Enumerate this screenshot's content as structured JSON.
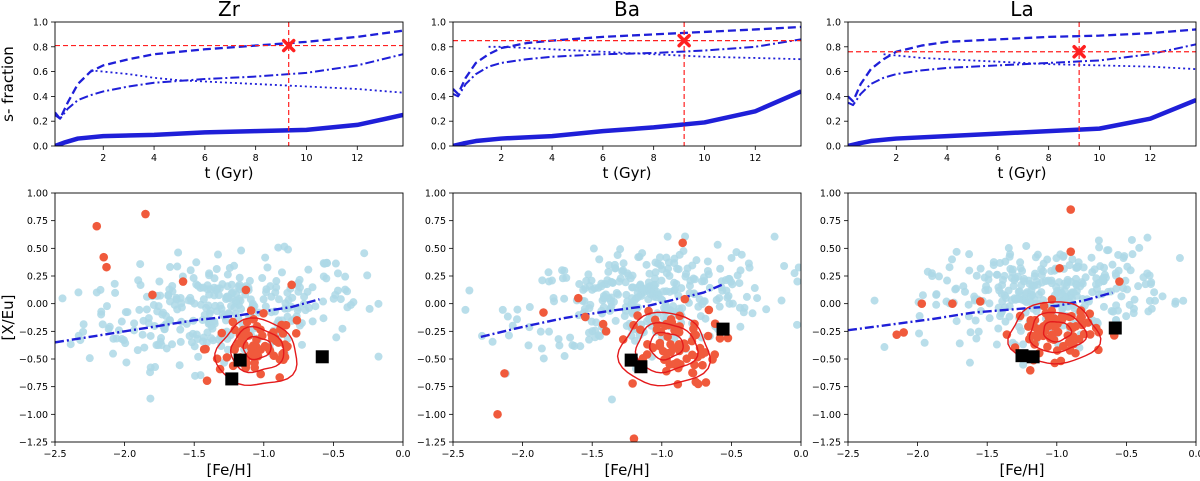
{
  "colors": {
    "model_line": "#1f1fd8",
    "reference": "#ff2020",
    "field_points": "#add8e6",
    "cluster_points": "#f05a3c",
    "contour": "#e41a1c",
    "highlight": "#000000"
  },
  "ylabels": {
    "top": "s- fraction",
    "bottom": "[X/Eu]"
  },
  "xlabels": {
    "top": "t (Gyr)",
    "bottom": "[Fe/H]"
  },
  "chart_data": [
    {
      "panel": "Zr",
      "type": "line",
      "title": "Zr",
      "xlabel": "t (Gyr)",
      "ylabel": "s- fraction",
      "xlim": [
        0.1,
        13.8
      ],
      "ylim": [
        0,
        1.0
      ],
      "xticks": [
        2,
        4,
        6,
        8,
        10,
        12
      ],
      "yticks": [
        0.0,
        0.2,
        0.4,
        0.6,
        0.8,
        1.0
      ],
      "reference": {
        "x": 9.3,
        "y": 0.81
      },
      "series": [
        {
          "style": "dashed",
          "x": [
            0.1,
            0.3,
            0.6,
            1,
            1.5,
            2,
            3,
            4,
            6,
            8,
            10,
            12,
            13.8
          ],
          "y": [
            0.27,
            0.22,
            0.35,
            0.5,
            0.6,
            0.65,
            0.7,
            0.74,
            0.78,
            0.81,
            0.84,
            0.88,
            0.93
          ]
        },
        {
          "style": "dashdot",
          "x": [
            0.1,
            0.3,
            0.6,
            1,
            1.5,
            2,
            3,
            4,
            6,
            8,
            10,
            12,
            13.8
          ],
          "y": [
            0.25,
            0.22,
            0.3,
            0.37,
            0.41,
            0.44,
            0.48,
            0.51,
            0.54,
            0.56,
            0.59,
            0.65,
            0.74
          ]
        },
        {
          "style": "dotted",
          "x": [
            1.5,
            2,
            3,
            4,
            5,
            6,
            8,
            10,
            12,
            13.8
          ],
          "y": [
            0.61,
            0.6,
            0.58,
            0.55,
            0.53,
            0.52,
            0.5,
            0.48,
            0.46,
            0.43
          ]
        },
        {
          "style": "thick",
          "x": [
            0.1,
            0.5,
            1,
            2,
            4,
            6,
            8,
            10,
            12,
            13.8
          ],
          "y": [
            0.0,
            0.03,
            0.06,
            0.08,
            0.09,
            0.11,
            0.12,
            0.13,
            0.17,
            0.25
          ]
        }
      ]
    },
    {
      "panel": "Ba",
      "type": "line",
      "title": "Ba",
      "xlabel": "t (Gyr)",
      "ylabel": "",
      "xlim": [
        0.1,
        13.8
      ],
      "ylim": [
        0,
        1.0
      ],
      "xticks": [
        2,
        4,
        6,
        8,
        10,
        12
      ],
      "yticks": [
        0.0,
        0.2,
        0.4,
        0.6,
        0.8,
        1.0
      ],
      "reference": {
        "x": 9.2,
        "y": 0.85
      },
      "series": [
        {
          "style": "dashed",
          "x": [
            0.1,
            0.3,
            0.6,
            1,
            1.5,
            2,
            3,
            4,
            6,
            8,
            10,
            12,
            13.8
          ],
          "y": [
            0.46,
            0.42,
            0.55,
            0.67,
            0.74,
            0.79,
            0.83,
            0.85,
            0.88,
            0.9,
            0.92,
            0.94,
            0.96
          ]
        },
        {
          "style": "dashdot",
          "x": [
            0.1,
            0.3,
            0.6,
            1,
            1.5,
            2,
            3,
            4,
            6,
            8,
            10,
            12,
            13.8
          ],
          "y": [
            0.42,
            0.4,
            0.5,
            0.58,
            0.64,
            0.67,
            0.7,
            0.72,
            0.74,
            0.75,
            0.77,
            0.8,
            0.86
          ]
        },
        {
          "style": "dotted",
          "x": [
            1.5,
            2,
            3,
            4,
            6,
            8,
            10,
            12,
            13.8
          ],
          "y": [
            0.8,
            0.8,
            0.79,
            0.78,
            0.76,
            0.74,
            0.72,
            0.71,
            0.7
          ]
        },
        {
          "style": "thick",
          "x": [
            0.1,
            0.5,
            1,
            2,
            4,
            6,
            8,
            10,
            12,
            13.8
          ],
          "y": [
            0.0,
            0.02,
            0.04,
            0.06,
            0.08,
            0.12,
            0.15,
            0.19,
            0.28,
            0.44
          ]
        }
      ]
    },
    {
      "panel": "La",
      "type": "line",
      "title": "La",
      "xlabel": "t (Gyr)",
      "ylabel": "",
      "xlim": [
        0.1,
        13.8
      ],
      "ylim": [
        0,
        1.0
      ],
      "xticks": [
        2,
        4,
        6,
        8,
        10,
        12
      ],
      "yticks": [
        0.0,
        0.2,
        0.4,
        0.6,
        0.8,
        1.0
      ],
      "reference": {
        "x": 9.2,
        "y": 0.76
      },
      "series": [
        {
          "style": "dashed",
          "x": [
            0.1,
            0.3,
            0.6,
            1,
            1.5,
            2,
            3,
            4,
            6,
            8,
            10,
            12,
            13.8
          ],
          "y": [
            0.4,
            0.36,
            0.5,
            0.62,
            0.7,
            0.76,
            0.81,
            0.84,
            0.86,
            0.88,
            0.89,
            0.91,
            0.94
          ]
        },
        {
          "style": "dashdot",
          "x": [
            0.1,
            0.3,
            0.6,
            1,
            1.5,
            2,
            3,
            4,
            6,
            8,
            10,
            12,
            13.8
          ],
          "y": [
            0.35,
            0.33,
            0.42,
            0.5,
            0.55,
            0.58,
            0.61,
            0.63,
            0.65,
            0.67,
            0.69,
            0.74,
            0.82
          ]
        },
        {
          "style": "dotted",
          "x": [
            1.5,
            2,
            3,
            4,
            6,
            8,
            10,
            12,
            13.8
          ],
          "y": [
            0.74,
            0.73,
            0.71,
            0.7,
            0.68,
            0.66,
            0.65,
            0.64,
            0.62
          ]
        },
        {
          "style": "thick",
          "x": [
            0.1,
            0.5,
            1,
            2,
            4,
            6,
            8,
            10,
            12,
            13.8
          ],
          "y": [
            0.0,
            0.02,
            0.04,
            0.06,
            0.08,
            0.1,
            0.12,
            0.14,
            0.22,
            0.37
          ]
        }
      ]
    },
    {
      "panel": "Zr",
      "type": "scatter",
      "xlabel": "[Fe/H]",
      "ylabel": "[X/Eu]",
      "xlim": [
        -2.5,
        0.0
      ],
      "ylim": [
        -1.25,
        1.0
      ],
      "xticks": [
        -2.5,
        -2.0,
        -1.5,
        -1.0,
        -0.5,
        0.0
      ],
      "yticks": [
        -1.25,
        -1.0,
        -0.75,
        -0.5,
        -0.25,
        0.0,
        0.25,
        0.5,
        0.75,
        1.0
      ],
      "field_center": [
        -1.3,
        -0.05
      ],
      "field_spread": [
        0.5,
        0.22
      ],
      "model_curve": {
        "x": [
          -2.5,
          -2.2,
          -1.8,
          -1.5,
          -1.2,
          -1.0,
          -0.8,
          -0.6
        ],
        "y": [
          -0.35,
          -0.29,
          -0.21,
          -0.15,
          -0.11,
          -0.07,
          -0.03,
          0.04
        ]
      },
      "cluster_center": [
        -1.05,
        -0.4
      ],
      "cluster_spread": [
        0.18,
        0.16
      ],
      "outliers": [
        [
          -1.85,
          0.81
        ],
        [
          -2.2,
          0.7
        ],
        [
          -2.15,
          0.42
        ],
        [
          -2.13,
          0.33
        ],
        [
          -1.58,
          0.2
        ],
        [
          -1.8,
          0.08
        ],
        [
          -0.8,
          0.17
        ]
      ],
      "highlight_points": [
        [
          -1.17,
          -0.51
        ],
        [
          -0.58,
          -0.48
        ],
        [
          -1.23,
          -0.68
        ]
      ],
      "contours": [
        {
          "rx": 0.29,
          "ry": 0.3,
          "cx": -1.05,
          "cy": -0.45
        },
        {
          "rx": 0.19,
          "ry": 0.2,
          "cx": -1.05,
          "cy": -0.42
        },
        {
          "rx": 0.1,
          "ry": 0.1,
          "cx": -1.05,
          "cy": -0.4
        }
      ]
    },
    {
      "panel": "Ba",
      "type": "scatter",
      "xlabel": "[Fe/H]",
      "ylabel": "",
      "xlim": [
        -2.5,
        0.0
      ],
      "ylim": [
        -1.25,
        1.0
      ],
      "xticks": [
        -2.5,
        -2.0,
        -1.5,
        -1.0,
        -0.5,
        0.0
      ],
      "yticks": [
        -1.25,
        -1.0,
        -0.75,
        -0.5,
        -0.25,
        0.0,
        0.25,
        0.5,
        0.75,
        1.0
      ],
      "field_center": [
        -1.1,
        0.05
      ],
      "field_spread": [
        0.45,
        0.22
      ],
      "model_curve": {
        "x": [
          -2.3,
          -2.0,
          -1.7,
          -1.4,
          -1.1,
          -0.9,
          -0.7,
          -0.55
        ],
        "y": [
          -0.3,
          -0.21,
          -0.13,
          -0.07,
          -0.02,
          0.04,
          0.1,
          0.18
        ]
      },
      "cluster_center": [
        -0.95,
        -0.38
      ],
      "cluster_spread": [
        0.18,
        0.18
      ],
      "outliers": [
        [
          -2.18,
          -1.0
        ],
        [
          -2.13,
          -0.63
        ],
        [
          -1.2,
          -1.22
        ],
        [
          -1.4,
          -0.25
        ],
        [
          -1.55,
          -0.12
        ],
        [
          -1.85,
          -0.08
        ],
        [
          -0.85,
          0.55
        ],
        [
          -1.6,
          0.05
        ]
      ],
      "highlight_points": [
        [
          -1.22,
          -0.51
        ],
        [
          -1.15,
          -0.57
        ],
        [
          -0.56,
          -0.23
        ]
      ],
      "contours": [
        {
          "rx": 0.32,
          "ry": 0.33,
          "cx": -0.98,
          "cy": -0.42
        },
        {
          "rx": 0.22,
          "ry": 0.22,
          "cx": -0.97,
          "cy": -0.4
        },
        {
          "rx": 0.12,
          "ry": 0.12,
          "cx": -0.97,
          "cy": -0.38
        }
      ]
    },
    {
      "panel": "La",
      "type": "scatter",
      "xlabel": "[Fe/H]",
      "ylabel": "",
      "xlim": [
        -2.5,
        0.0
      ],
      "ylim": [
        -1.25,
        1.0
      ],
      "xticks": [
        -2.5,
        -2.0,
        -1.5,
        -1.0,
        -0.5,
        0.0
      ],
      "yticks": [
        -1.25,
        -1.0,
        -0.75,
        -0.5,
        -0.25,
        0.0,
        0.25,
        0.5,
        0.75,
        1.0
      ],
      "field_center": [
        -1.05,
        0.1
      ],
      "field_spread": [
        0.42,
        0.2
      ],
      "model_curve": {
        "x": [
          -2.5,
          -2.2,
          -1.9,
          -1.6,
          -1.3,
          -1.0,
          -0.8,
          -0.6
        ],
        "y": [
          -0.24,
          -0.19,
          -0.14,
          -0.08,
          -0.05,
          -0.02,
          0.03,
          0.1
        ]
      },
      "cluster_center": [
        -1.0,
        -0.25
      ],
      "cluster_spread": [
        0.15,
        0.12
      ],
      "outliers": [
        [
          -0.9,
          0.85
        ],
        [
          -0.9,
          0.47
        ],
        [
          -2.1,
          -0.26
        ],
        [
          -2.15,
          -0.28
        ],
        [
          -1.97,
          0.0
        ],
        [
          -1.75,
          0.0
        ],
        [
          -1.55,
          0.02
        ],
        [
          -0.55,
          0.2
        ],
        [
          -0.98,
          0.32
        ]
      ],
      "highlight_points": [
        [
          -1.25,
          -0.47
        ],
        [
          -1.17,
          -0.48
        ],
        [
          -0.58,
          -0.22
        ]
      ],
      "contours": [
        {
          "rx": 0.32,
          "ry": 0.28,
          "cx": -1.02,
          "cy": -0.27
        },
        {
          "rx": 0.2,
          "ry": 0.18,
          "cx": -1.0,
          "cy": -0.26
        },
        {
          "rx": 0.1,
          "ry": 0.09,
          "cx": -1.0,
          "cy": -0.25
        }
      ]
    }
  ]
}
